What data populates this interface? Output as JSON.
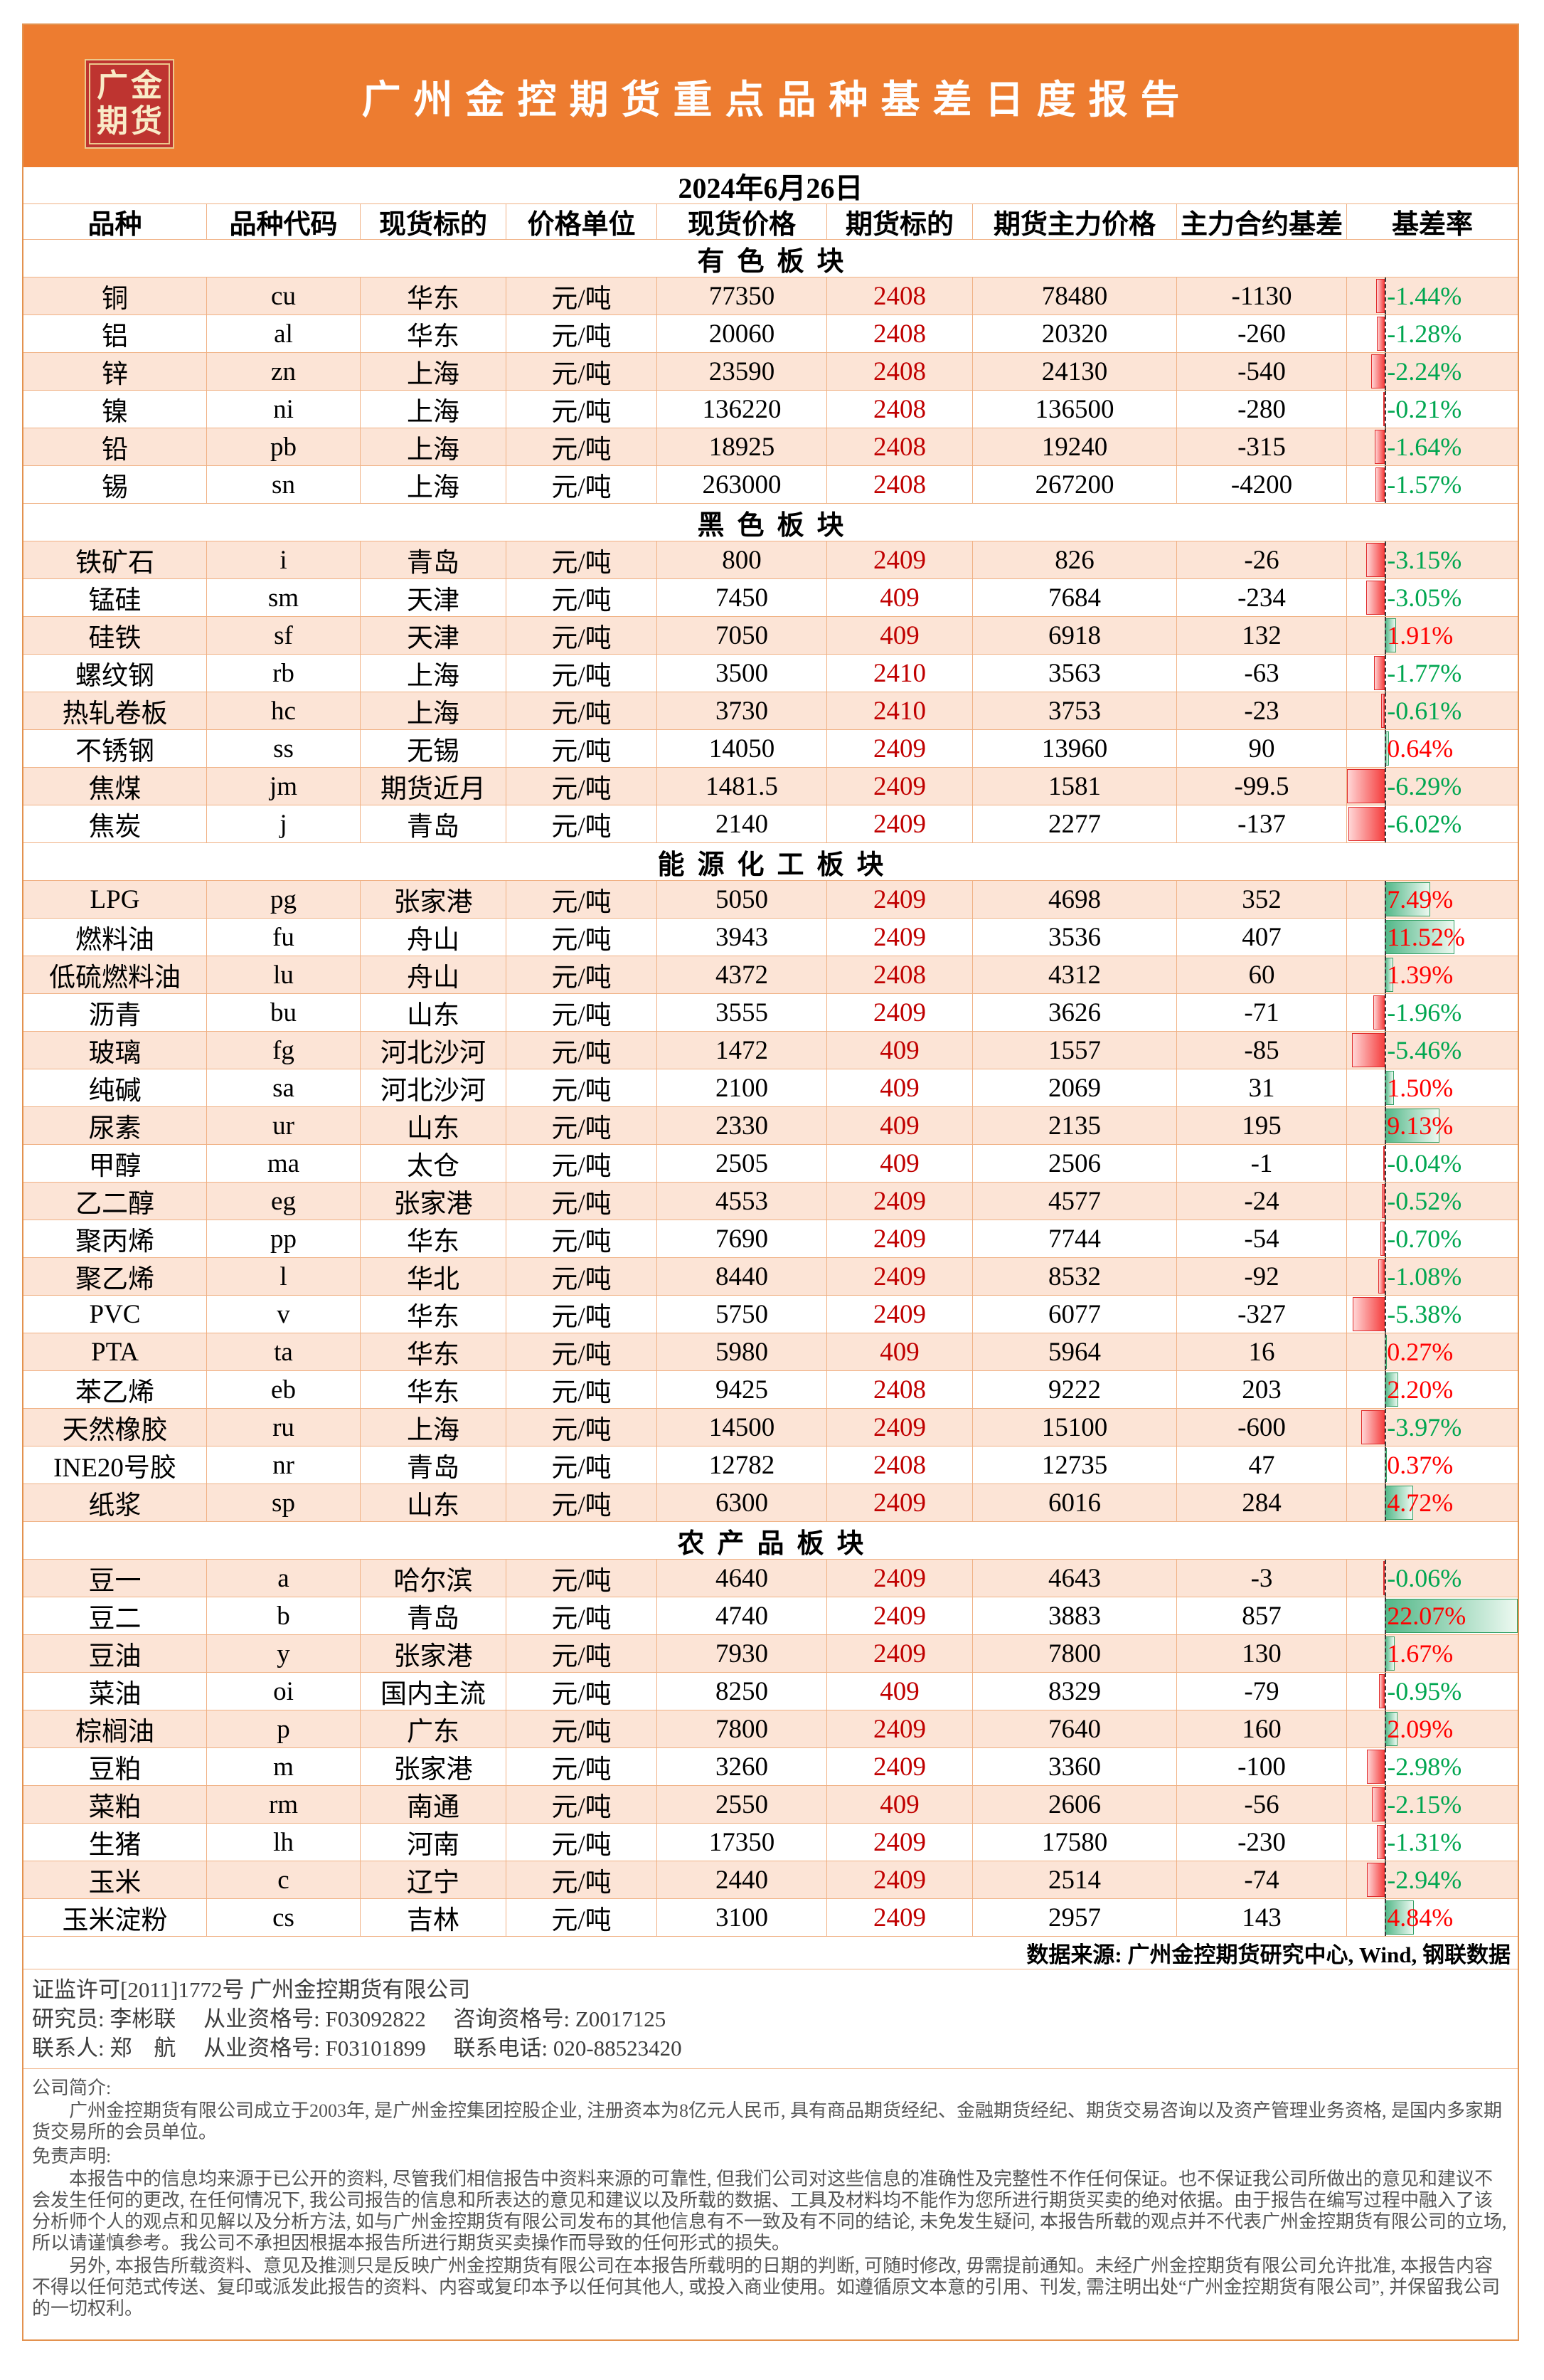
{
  "banner": {
    "logo_line1": "广金",
    "logo_line2": "期货",
    "title": "广州金控期货重点品种基差日度报告"
  },
  "report_date": "2024年6月26日",
  "columns": [
    "品种",
    "品种代码",
    "现货标的",
    "价格单位",
    "现货价格",
    "期货标的",
    "期货主力价格",
    "主力合约基差",
    "基差率"
  ],
  "sections": [
    {
      "name": "有色板块",
      "rows": [
        {
          "variety": "铜",
          "code": "cu",
          "spot_target": "华东",
          "unit": "元/吨",
          "spot_price": "77350",
          "futures_target": "2408",
          "futures_price": "78480",
          "basis": "-1130",
          "basis_rate": "-1.44%",
          "basis_rate_value": -1.44
        },
        {
          "variety": "铝",
          "code": "al",
          "spot_target": "华东",
          "unit": "元/吨",
          "spot_price": "20060",
          "futures_target": "2408",
          "futures_price": "20320",
          "basis": "-260",
          "basis_rate": "-1.28%",
          "basis_rate_value": -1.28
        },
        {
          "variety": "锌",
          "code": "zn",
          "spot_target": "上海",
          "unit": "元/吨",
          "spot_price": "23590",
          "futures_target": "2408",
          "futures_price": "24130",
          "basis": "-540",
          "basis_rate": "-2.24%",
          "basis_rate_value": -2.24
        },
        {
          "variety": "镍",
          "code": "ni",
          "spot_target": "上海",
          "unit": "元/吨",
          "spot_price": "136220",
          "futures_target": "2408",
          "futures_price": "136500",
          "basis": "-280",
          "basis_rate": "-0.21%",
          "basis_rate_value": -0.21
        },
        {
          "variety": "铅",
          "code": "pb",
          "spot_target": "上海",
          "unit": "元/吨",
          "spot_price": "18925",
          "futures_target": "2408",
          "futures_price": "19240",
          "basis": "-315",
          "basis_rate": "-1.64%",
          "basis_rate_value": -1.64
        },
        {
          "variety": "锡",
          "code": "sn",
          "spot_target": "上海",
          "unit": "元/吨",
          "spot_price": "263000",
          "futures_target": "2408",
          "futures_price": "267200",
          "basis": "-4200",
          "basis_rate": "-1.57%",
          "basis_rate_value": -1.57
        }
      ]
    },
    {
      "name": "黑色板块",
      "rows": [
        {
          "variety": "铁矿石",
          "code": "i",
          "spot_target": "青岛",
          "unit": "元/吨",
          "spot_price": "800",
          "futures_target": "2409",
          "futures_price": "826",
          "basis": "-26",
          "basis_rate": "-3.15%",
          "basis_rate_value": -3.15
        },
        {
          "variety": "锰硅",
          "code": "sm",
          "spot_target": "天津",
          "unit": "元/吨",
          "spot_price": "7450",
          "futures_target": "409",
          "futures_price": "7684",
          "basis": "-234",
          "basis_rate": "-3.05%",
          "basis_rate_value": -3.05
        },
        {
          "variety": "硅铁",
          "code": "sf",
          "spot_target": "天津",
          "unit": "元/吨",
          "spot_price": "7050",
          "futures_target": "409",
          "futures_price": "6918",
          "basis": "132",
          "basis_rate": "1.91%",
          "basis_rate_value": 1.91
        },
        {
          "variety": "螺纹钢",
          "code": "rb",
          "spot_target": "上海",
          "unit": "元/吨",
          "spot_price": "3500",
          "futures_target": "2410",
          "futures_price": "3563",
          "basis": "-63",
          "basis_rate": "-1.77%",
          "basis_rate_value": -1.77
        },
        {
          "variety": "热轧卷板",
          "code": "hc",
          "spot_target": "上海",
          "unit": "元/吨",
          "spot_price": "3730",
          "futures_target": "2410",
          "futures_price": "3753",
          "basis": "-23",
          "basis_rate": "-0.61%",
          "basis_rate_value": -0.61
        },
        {
          "variety": "不锈钢",
          "code": "ss",
          "spot_target": "无锡",
          "unit": "元/吨",
          "spot_price": "14050",
          "futures_target": "2409",
          "futures_price": "13960",
          "basis": "90",
          "basis_rate": "0.64%",
          "basis_rate_value": 0.64
        },
        {
          "variety": "焦煤",
          "code": "jm",
          "spot_target": "期货近月",
          "unit": "元/吨",
          "spot_price": "1481.5",
          "futures_target": "2409",
          "futures_price": "1581",
          "basis": "-99.5",
          "basis_rate": "-6.29%",
          "basis_rate_value": -6.29
        },
        {
          "variety": "焦炭",
          "code": "j",
          "spot_target": "青岛",
          "unit": "元/吨",
          "spot_price": "2140",
          "futures_target": "2409",
          "futures_price": "2277",
          "basis": "-137",
          "basis_rate": "-6.02%",
          "basis_rate_value": -6.02
        }
      ]
    },
    {
      "name": "能源化工板块",
      "rows": [
        {
          "variety": "LPG",
          "code": "pg",
          "spot_target": "张家港",
          "unit": "元/吨",
          "spot_price": "5050",
          "futures_target": "2409",
          "futures_price": "4698",
          "basis": "352",
          "basis_rate": "7.49%",
          "basis_rate_value": 7.49
        },
        {
          "variety": "燃料油",
          "code": "fu",
          "spot_target": "舟山",
          "unit": "元/吨",
          "spot_price": "3943",
          "futures_target": "2409",
          "futures_price": "3536",
          "basis": "407",
          "basis_rate": "11.52%",
          "basis_rate_value": 11.52
        },
        {
          "variety": "低硫燃料油",
          "code": "lu",
          "spot_target": "舟山",
          "unit": "元/吨",
          "spot_price": "4372",
          "futures_target": "2408",
          "futures_price": "4312",
          "basis": "60",
          "basis_rate": "1.39%",
          "basis_rate_value": 1.39
        },
        {
          "variety": "沥青",
          "code": "bu",
          "spot_target": "山东",
          "unit": "元/吨",
          "spot_price": "3555",
          "futures_target": "2409",
          "futures_price": "3626",
          "basis": "-71",
          "basis_rate": "-1.96%",
          "basis_rate_value": -1.96
        },
        {
          "variety": "玻璃",
          "code": "fg",
          "spot_target": "河北沙河",
          "unit": "元/吨",
          "spot_price": "1472",
          "futures_target": "409",
          "futures_price": "1557",
          "basis": "-85",
          "basis_rate": "-5.46%",
          "basis_rate_value": -5.46
        },
        {
          "variety": "纯碱",
          "code": "sa",
          "spot_target": "河北沙河",
          "unit": "元/吨",
          "spot_price": "2100",
          "futures_target": "409",
          "futures_price": "2069",
          "basis": "31",
          "basis_rate": "1.50%",
          "basis_rate_value": 1.5
        },
        {
          "variety": "尿素",
          "code": "ur",
          "spot_target": "山东",
          "unit": "元/吨",
          "spot_price": "2330",
          "futures_target": "409",
          "futures_price": "2135",
          "basis": "195",
          "basis_rate": "9.13%",
          "basis_rate_value": 9.13
        },
        {
          "variety": "甲醇",
          "code": "ma",
          "spot_target": "太仓",
          "unit": "元/吨",
          "spot_price": "2505",
          "futures_target": "409",
          "futures_price": "2506",
          "basis": "-1",
          "basis_rate": "-0.04%",
          "basis_rate_value": -0.04
        },
        {
          "variety": "乙二醇",
          "code": "eg",
          "spot_target": "张家港",
          "unit": "元/吨",
          "spot_price": "4553",
          "futures_target": "2409",
          "futures_price": "4577",
          "basis": "-24",
          "basis_rate": "-0.52%",
          "basis_rate_value": -0.52
        },
        {
          "variety": "聚丙烯",
          "code": "pp",
          "spot_target": "华东",
          "unit": "元/吨",
          "spot_price": "7690",
          "futures_target": "2409",
          "futures_price": "7744",
          "basis": "-54",
          "basis_rate": "-0.70%",
          "basis_rate_value": -0.7
        },
        {
          "variety": "聚乙烯",
          "code": "l",
          "spot_target": "华北",
          "unit": "元/吨",
          "spot_price": "8440",
          "futures_target": "2409",
          "futures_price": "8532",
          "basis": "-92",
          "basis_rate": "-1.08%",
          "basis_rate_value": -1.08
        },
        {
          "variety": "PVC",
          "code": "v",
          "spot_target": "华东",
          "unit": "元/吨",
          "spot_price": "5750",
          "futures_target": "2409",
          "futures_price": "6077",
          "basis": "-327",
          "basis_rate": "-5.38%",
          "basis_rate_value": -5.38
        },
        {
          "variety": "PTA",
          "code": "ta",
          "spot_target": "华东",
          "unit": "元/吨",
          "spot_price": "5980",
          "futures_target": "409",
          "futures_price": "5964",
          "basis": "16",
          "basis_rate": "0.27%",
          "basis_rate_value": 0.27
        },
        {
          "variety": "苯乙烯",
          "code": "eb",
          "spot_target": "华东",
          "unit": "元/吨",
          "spot_price": "9425",
          "futures_target": "2408",
          "futures_price": "9222",
          "basis": "203",
          "basis_rate": "2.20%",
          "basis_rate_value": 2.2
        },
        {
          "variety": "天然橡胶",
          "code": "ru",
          "spot_target": "上海",
          "unit": "元/吨",
          "spot_price": "14500",
          "futures_target": "2409",
          "futures_price": "15100",
          "basis": "-600",
          "basis_rate": "-3.97%",
          "basis_rate_value": -3.97
        },
        {
          "variety": "INE20号胶",
          "code": "nr",
          "spot_target": "青岛",
          "unit": "元/吨",
          "spot_price": "12782",
          "futures_target": "2408",
          "futures_price": "12735",
          "basis": "47",
          "basis_rate": "0.37%",
          "basis_rate_value": 0.37
        },
        {
          "variety": "纸浆",
          "code": "sp",
          "spot_target": "山东",
          "unit": "元/吨",
          "spot_price": "6300",
          "futures_target": "2409",
          "futures_price": "6016",
          "basis": "284",
          "basis_rate": "4.72%",
          "basis_rate_value": 4.72
        }
      ]
    },
    {
      "name": "农产品板块",
      "rows": [
        {
          "variety": "豆一",
          "code": "a",
          "spot_target": "哈尔滨",
          "unit": "元/吨",
          "spot_price": "4640",
          "futures_target": "2409",
          "futures_price": "4643",
          "basis": "-3",
          "basis_rate": "-0.06%",
          "basis_rate_value": -0.06
        },
        {
          "variety": "豆二",
          "code": "b",
          "spot_target": "青岛",
          "unit": "元/吨",
          "spot_price": "4740",
          "futures_target": "2409",
          "futures_price": "3883",
          "basis": "857",
          "basis_rate": "22.07%",
          "basis_rate_value": 22.07
        },
        {
          "variety": "豆油",
          "code": "y",
          "spot_target": "张家港",
          "unit": "元/吨",
          "spot_price": "7930",
          "futures_target": "2409",
          "futures_price": "7800",
          "basis": "130",
          "basis_rate": "1.67%",
          "basis_rate_value": 1.67
        },
        {
          "variety": "菜油",
          "code": "oi",
          "spot_target": "国内主流",
          "unit": "元/吨",
          "spot_price": "8250",
          "futures_target": "409",
          "futures_price": "8329",
          "basis": "-79",
          "basis_rate": "-0.95%",
          "basis_rate_value": -0.95
        },
        {
          "variety": "棕榈油",
          "code": "p",
          "spot_target": "广东",
          "unit": "元/吨",
          "spot_price": "7800",
          "futures_target": "2409",
          "futures_price": "7640",
          "basis": "160",
          "basis_rate": "2.09%",
          "basis_rate_value": 2.09
        },
        {
          "variety": "豆粕",
          "code": "m",
          "spot_target": "张家港",
          "unit": "元/吨",
          "spot_price": "3260",
          "futures_target": "2409",
          "futures_price": "3360",
          "basis": "-100",
          "basis_rate": "-2.98%",
          "basis_rate_value": -2.98
        },
        {
          "variety": "菜粕",
          "code": "rm",
          "spot_target": "南通",
          "unit": "元/吨",
          "spot_price": "2550",
          "futures_target": "409",
          "futures_price": "2606",
          "basis": "-56",
          "basis_rate": "-2.15%",
          "basis_rate_value": -2.15
        },
        {
          "variety": "生猪",
          "code": "lh",
          "spot_target": "河南",
          "unit": "元/吨",
          "spot_price": "17350",
          "futures_target": "2409",
          "futures_price": "17580",
          "basis": "-230",
          "basis_rate": "-1.31%",
          "basis_rate_value": -1.31
        },
        {
          "variety": "玉米",
          "code": "c",
          "spot_target": "辽宁",
          "unit": "元/吨",
          "spot_price": "2440",
          "futures_target": "2409",
          "futures_price": "2514",
          "basis": "-74",
          "basis_rate": "-2.94%",
          "basis_rate_value": -2.94
        },
        {
          "variety": "玉米淀粉",
          "code": "cs",
          "spot_target": "吉林",
          "unit": "元/吨",
          "spot_price": "3100",
          "futures_target": "2409",
          "futures_price": "2957",
          "basis": "143",
          "basis_rate": "4.84%",
          "basis_rate_value": 4.84
        }
      ]
    }
  ],
  "data_source": "数据来源: 广州金控期货研究中心, Wind, 钢联数据",
  "contact": {
    "license_line": "证监许可[2011]1772号 广州金控期货有限公司",
    "researcher_line": "研究员: 李彬联　 从业资格号: F03092822 　咨询资格号: Z0017125",
    "contact_line": "联系人: 郑　航　 从业资格号: F03101899 　联系电话: 020-88523420"
  },
  "about": {
    "intro_label": "公司简介:",
    "intro": "广州金控期货有限公司成立于2003年, 是广州金控集团控股企业, 注册资本为8亿元人民币, 具有商品期货经纪、金融期货经纪、期货交易咨询以及资产管理业务资格, 是国内多家期货交易所的会员单位。",
    "disclaimer_label": "免责声明:",
    "disclaimer_p1": "本报告中的信息均来源于已公开的资料, 尽管我们相信报告中资料来源的可靠性, 但我们公司对这些信息的准确性及完整性不作任何保证。也不保证我公司所做出的意见和建议不会发生任何的更改, 在任何情况下, 我公司报告的信息和所表达的意见和建议以及所载的数据、工具及材料均不能作为您所进行期货买卖的绝对依据。由于报告在编写过程中融入了该分析师个人的观点和见解以及分析方法, 如与广州金控期货有限公司发布的其他信息有不一致及有不同的结论, 未免发生疑问, 本报告所载的观点并不代表广州金控期货有限公司的立场, 所以请谨慎参考。我公司不承担因根据本报告所进行期货买卖操作而导致的任何形式的损失。",
    "disclaimer_p2": "另外, 本报告所载资料、意见及推测只是反映广州金控期货有限公司在本报告所载明的日期的判断, 可随时修改, 毋需提前通知。未经广州金控期货有限公司允许批准, 本报告内容不得以任何范式传送、复印或派发此报告的资料、内容或复印本予以任何其他人, 或投入商业使用。如遵循原文本意的引用、刊发, 需注明出处“广州金控期货有限公司”, 并保留我公司的一切权利。"
  },
  "colors": {
    "banner_bg": "#ED7C30",
    "logo_bg": "#BE3430",
    "logo_gold": "#ECC98D",
    "stripe": "#FCE4D6",
    "cell_border": "#F0B184",
    "futures_code_text": "#C00000",
    "positive_text": "#FF0000",
    "negative_text": "#00A650",
    "positive_bar": "#52B788",
    "negative_bar": "#F54040"
  }
}
